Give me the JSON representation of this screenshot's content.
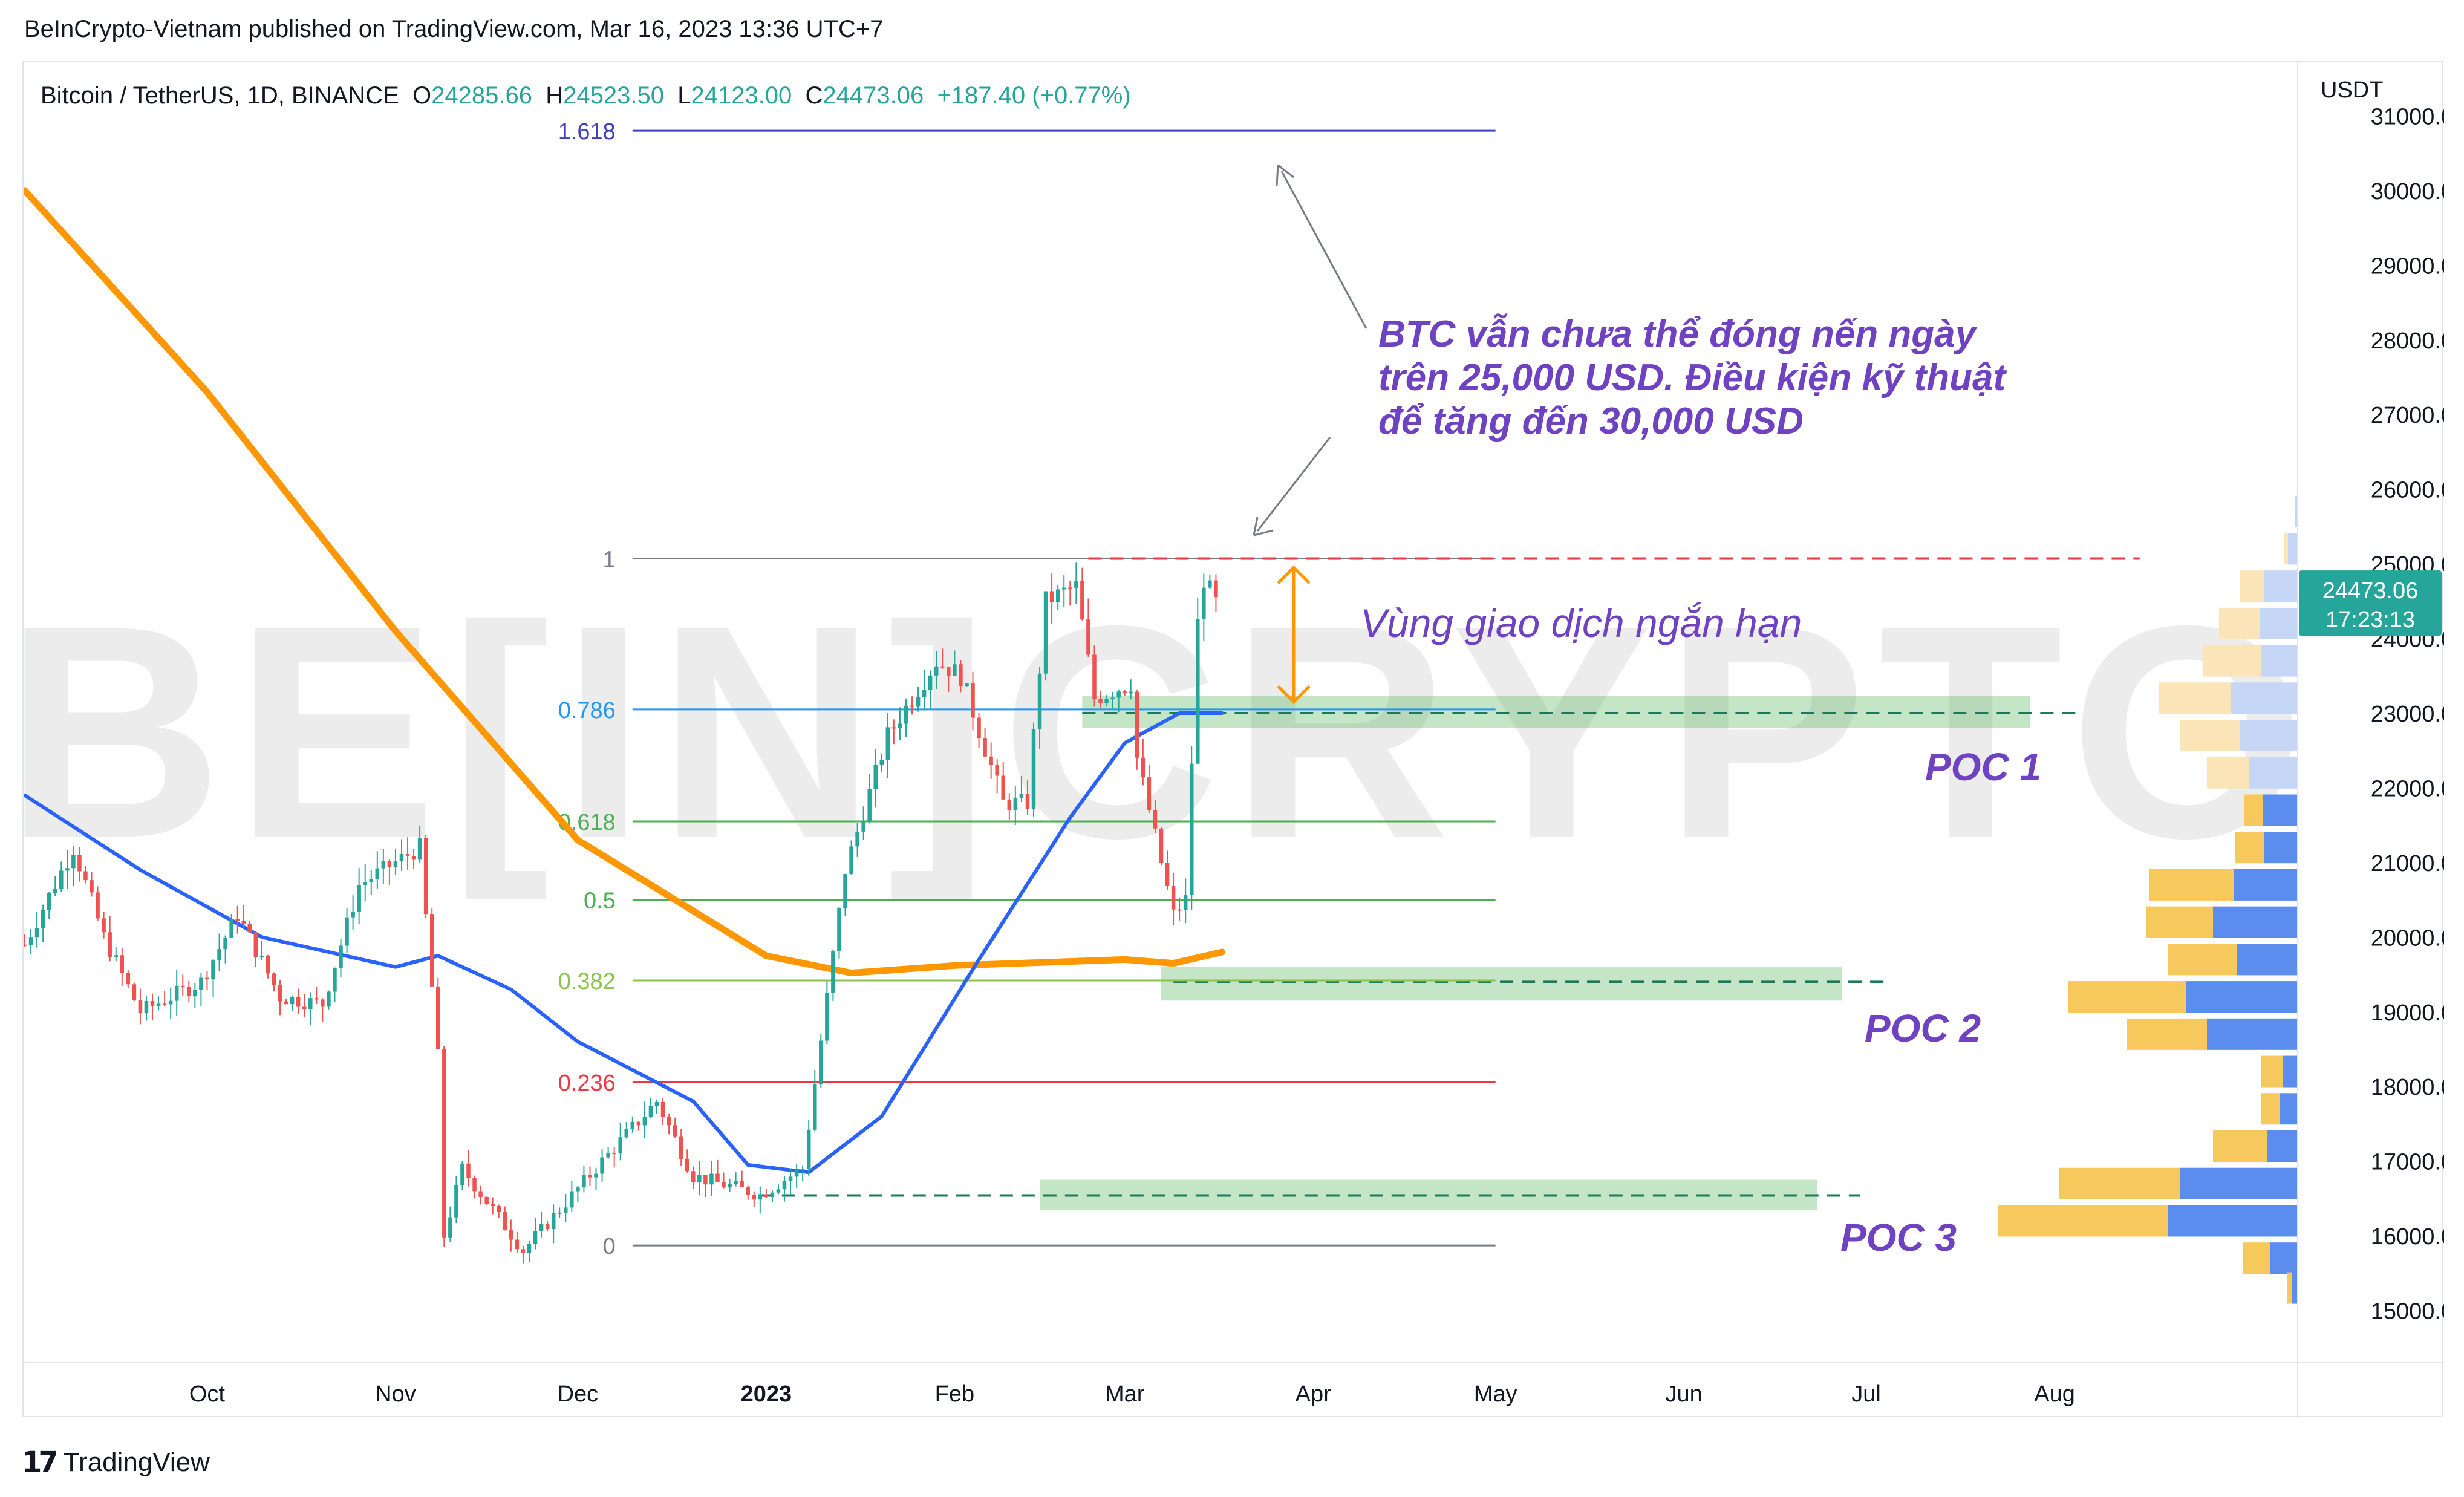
{
  "header": {
    "publisher_line": "BeInCrypto-Vietnam published on TradingView.com, Mar 16, 2023 13:36 UTC+7"
  },
  "footer": {
    "brand": "TradingView",
    "logo_icon": "tradingview-logo-icon"
  },
  "watermark": "BE[IN]CRYPTO",
  "chart_data": {
    "type": "candlestick",
    "symbol_line": {
      "name": "Bitcoin / TetherUS, 1D, BINANCE",
      "open_label": "O",
      "open": "24285.66",
      "high_label": "H",
      "high": "24523.50",
      "low_label": "L",
      "low": "24123.00",
      "close_label": "C",
      "close": "24473.06",
      "change": "+187.40 (+0.77%)"
    },
    "y_axis": {
      "unit": "USDT",
      "ylim": [
        14300,
        31700
      ],
      "ticks": [
        "31000.00",
        "30000.00",
        "29000.00",
        "28000.00",
        "27000.00",
        "26000.00",
        "25000.00",
        "24000.00",
        "23000.00",
        "22000.00",
        "21000.00",
        "20000.00",
        "19000.00",
        "18000.00",
        "17000.00",
        "16000.00",
        "15000.00"
      ],
      "current_price": "24473.06",
      "countdown": "17:23:13"
    },
    "x_axis": {
      "start": "2022-09-01",
      "end": "2023-09-10",
      "ticks": [
        {
          "label": "Oct",
          "date": "2022-10-01",
          "bold": false
        },
        {
          "label": "Nov",
          "date": "2022-11-01",
          "bold": false
        },
        {
          "label": "Dec",
          "date": "2022-12-01",
          "bold": false
        },
        {
          "label": "2023",
          "date": "2023-01-01",
          "bold": true
        },
        {
          "label": "Feb",
          "date": "2023-02-01",
          "bold": false
        },
        {
          "label": "Mar",
          "date": "2023-03-01",
          "bold": false
        },
        {
          "label": "Apr",
          "date": "2023-04-01",
          "bold": false
        },
        {
          "label": "May",
          "date": "2023-05-01",
          "bold": false
        },
        {
          "label": "Jun",
          "date": "2023-06-01",
          "bold": false
        },
        {
          "label": "Jul",
          "date": "2023-07-01",
          "bold": false
        },
        {
          "label": "Aug",
          "date": "2023-08-01",
          "bold": false
        }
      ]
    },
    "price_path": {
      "up_color": "#26a69a",
      "down_color": "#ef5350",
      "anchors": [
        {
          "date": "2022-09-01",
          "price": 19900
        },
        {
          "date": "2022-09-09",
          "price": 21200
        },
        {
          "date": "2022-09-14",
          "price": 20000
        },
        {
          "date": "2022-09-20",
          "price": 19000
        },
        {
          "date": "2022-09-30",
          "price": 19400
        },
        {
          "date": "2022-10-06",
          "price": 20300
        },
        {
          "date": "2022-10-13",
          "price": 19200
        },
        {
          "date": "2022-10-20",
          "price": 19100
        },
        {
          "date": "2022-10-26",
          "price": 20700
        },
        {
          "date": "2022-11-05",
          "price": 21200
        },
        {
          "date": "2022-11-08",
          "price": 18400
        },
        {
          "date": "2022-11-09",
          "price": 16000
        },
        {
          "date": "2022-11-12",
          "price": 16900
        },
        {
          "date": "2022-11-22",
          "price": 15800
        },
        {
          "date": "2022-12-05",
          "price": 17000
        },
        {
          "date": "2022-12-14",
          "price": 17800
        },
        {
          "date": "2022-12-20",
          "price": 16800
        },
        {
          "date": "2022-12-31",
          "price": 16550
        },
        {
          "date": "2023-01-07",
          "price": 16900
        },
        {
          "date": "2023-01-14",
          "price": 20900
        },
        {
          "date": "2023-01-21",
          "price": 22700
        },
        {
          "date": "2023-01-29",
          "price": 23700
        },
        {
          "date": "2023-02-02",
          "price": 23500
        },
        {
          "date": "2023-02-09",
          "price": 21800
        },
        {
          "date": "2023-02-13",
          "price": 21800
        },
        {
          "date": "2023-02-16",
          "price": 24500
        },
        {
          "date": "2023-02-21",
          "price": 24700
        },
        {
          "date": "2023-02-24",
          "price": 23200
        },
        {
          "date": "2023-03-02",
          "price": 23400
        },
        {
          "date": "2023-03-03",
          "price": 22400
        },
        {
          "date": "2023-03-09",
          "price": 20300
        },
        {
          "date": "2023-03-11",
          "price": 20500
        },
        {
          "date": "2023-03-13",
          "price": 24200
        },
        {
          "date": "2023-03-14",
          "price": 24800
        },
        {
          "date": "2023-03-16",
          "price": 24470
        }
      ]
    },
    "ma_200": {
      "color": "#ff9800",
      "points": [
        {
          "date": "2022-09-01",
          "price": 30000
        },
        {
          "date": "2022-10-01",
          "price": 27300
        },
        {
          "date": "2022-11-01",
          "price": 24100
        },
        {
          "date": "2022-12-01",
          "price": 21300
        },
        {
          "date": "2023-01-01",
          "price": 19750
        },
        {
          "date": "2023-01-15",
          "price": 19520
        },
        {
          "date": "2023-02-01",
          "price": 19620
        },
        {
          "date": "2023-03-01",
          "price": 19700
        },
        {
          "date": "2023-03-09",
          "price": 19650
        },
        {
          "date": "2023-03-17",
          "price": 19800
        }
      ]
    },
    "ma_50": {
      "color": "#2962ff",
      "points": [
        {
          "date": "2022-09-01",
          "price": 21900
        },
        {
          "date": "2022-09-20",
          "price": 20900
        },
        {
          "date": "2022-10-10",
          "price": 20000
        },
        {
          "date": "2022-11-01",
          "price": 19600
        },
        {
          "date": "2022-11-08",
          "price": 19750
        },
        {
          "date": "2022-11-20",
          "price": 19300
        },
        {
          "date": "2022-12-01",
          "price": 18600
        },
        {
          "date": "2022-12-20",
          "price": 17800
        },
        {
          "date": "2022-12-29",
          "price": 16950
        },
        {
          "date": "2023-01-08",
          "price": 16850
        },
        {
          "date": "2023-01-20",
          "price": 17600
        },
        {
          "date": "2023-02-05",
          "price": 19700
        },
        {
          "date": "2023-02-20",
          "price": 21600
        },
        {
          "date": "2023-03-01",
          "price": 22600
        },
        {
          "date": "2023-03-10",
          "price": 23000
        },
        {
          "date": "2023-03-17",
          "price": 23000
        }
      ]
    },
    "fibonacci": [
      {
        "level": "1.618",
        "price": 30800,
        "color": "#3f3fbf"
      },
      {
        "level": "1",
        "price": 25070,
        "color": "#787b86"
      },
      {
        "level": "0.786",
        "price": 23050,
        "color": "#2196f3"
      },
      {
        "level": "0.618",
        "price": 21550,
        "color": "#4caf50"
      },
      {
        "level": "0.5",
        "price": 20500,
        "color": "#4caf50"
      },
      {
        "level": "0.382",
        "price": 19420,
        "color": "#8bc34a"
      },
      {
        "level": "0.236",
        "price": 18060,
        "color": "#f23645"
      },
      {
        "level": "0",
        "price": 15870,
        "color": "#787b86"
      }
    ],
    "fib_range": {
      "start": "2022-12-10",
      "end": "2023-05-01"
    },
    "resistance_line": {
      "price": 25070,
      "start": "2023-02-23",
      "end": "2023-08-15",
      "color": "#f23645"
    },
    "poc_zones": [
      {
        "label": "POC 1",
        "price": 23000,
        "band": [
          22800,
          23230
        ],
        "zone_start": "2023-02-22",
        "zone_end": "2023-07-28",
        "line_start": "2023-02-22",
        "line_end": "2023-08-05"
      },
      {
        "label": "POC 2",
        "price": 19400,
        "band": [
          19150,
          19600
        ],
        "zone_start": "2023-03-07",
        "zone_end": "2023-06-27",
        "line_start": "2023-03-09",
        "line_end": "2023-07-04"
      },
      {
        "label": "POC 3",
        "price": 16540,
        "band": [
          16350,
          16750
        ],
        "zone_start": "2023-02-15",
        "zone_end": "2023-06-23",
        "line_start": "2022-12-31",
        "line_end": "2023-06-30"
      }
    ],
    "annotations": {
      "main_text": [
        "BTC vẫn chưa thể đóng nến ngày",
        "trên 25,000 USD. Điều kiện kỹ thuật",
        "để tăng đến 30,000 USD"
      ],
      "range_text": "Vùng giao dịch ngắn hạn",
      "text_color": "#6f42c1",
      "arrow_color": "#ff9800"
    },
    "volume_profile": {
      "colors": {
        "up_strong": "#5b8def",
        "down_strong": "#f7c95c",
        "up_light": "#c6d6f7",
        "down_light": "#fbe4b8"
      },
      "rows": [
        {
          "price": 25700,
          "up": 5,
          "down": 0,
          "light": true
        },
        {
          "price": 25200,
          "up": 16,
          "down": 6,
          "light": true
        },
        {
          "price": 24700,
          "up": 55,
          "down": 40,
          "light": true
        },
        {
          "price": 24200,
          "up": 62,
          "down": 68,
          "light": true
        },
        {
          "price": 23700,
          "up": 60,
          "down": 96,
          "light": true
        },
        {
          "price": 23200,
          "up": 110,
          "down": 120,
          "light": true
        },
        {
          "price": 22700,
          "up": 95,
          "down": 100,
          "light": true
        },
        {
          "price": 22200,
          "up": 80,
          "down": 70,
          "light": true
        },
        {
          "price": 21700,
          "up": 58,
          "down": 30,
          "light": false
        },
        {
          "price": 21200,
          "up": 55,
          "down": 48,
          "light": false
        },
        {
          "price": 20700,
          "up": 105,
          "down": 140,
          "light": false
        },
        {
          "price": 20200,
          "up": 140,
          "down": 110,
          "light": false
        },
        {
          "price": 19700,
          "up": 100,
          "down": 115,
          "light": false
        },
        {
          "price": 19200,
          "up": 185,
          "down": 195,
          "light": false
        },
        {
          "price": 18700,
          "up": 150,
          "down": 133,
          "light": false
        },
        {
          "price": 18200,
          "up": 25,
          "down": 35,
          "light": false
        },
        {
          "price": 17700,
          "up": 30,
          "down": 30,
          "light": false
        },
        {
          "price": 17200,
          "up": 50,
          "down": 90,
          "light": false
        },
        {
          "price": 16700,
          "up": 195,
          "down": 200,
          "light": false
        },
        {
          "price": 16200,
          "up": 215,
          "down": 280,
          "light": false
        },
        {
          "price": 15700,
          "up": 45,
          "down": 45,
          "light": false
        },
        {
          "price": 15300,
          "up": 10,
          "down": 8,
          "light": false
        }
      ]
    }
  }
}
